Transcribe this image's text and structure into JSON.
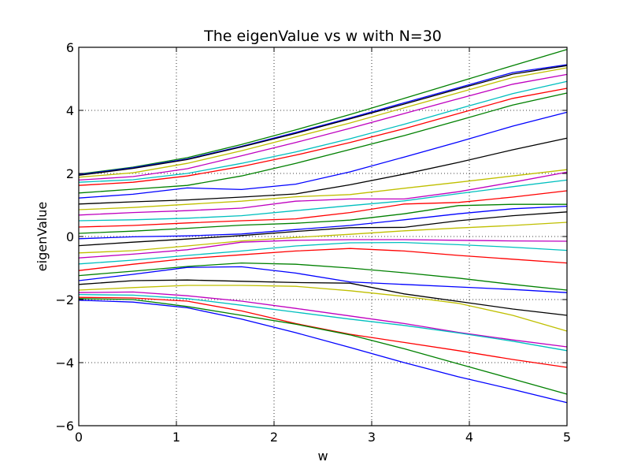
{
  "chart_data": {
    "type": "line",
    "title": "The eigenValue vs w with N=30",
    "xlabel": "w",
    "ylabel": "eigenValue",
    "xlim": [
      0,
      5
    ],
    "ylim": [
      -6,
      6
    ],
    "xticks": [
      0,
      1,
      2,
      3,
      4,
      5
    ],
    "yticks": [
      -6,
      -4,
      -2,
      0,
      2,
      4,
      6
    ],
    "grid": true,
    "x": [
      0,
      0.556,
      1.111,
      1.667,
      2.222,
      2.778,
      3.333,
      3.889,
      4.444,
      5
    ],
    "series": [
      {
        "color": "#008000",
        "values": [
          1.98,
          2.2,
          2.5,
          2.92,
          3.38,
          3.87,
          4.38,
          4.9,
          5.42,
          5.93
        ]
      },
      {
        "color": "#0000ff",
        "values": [
          1.96,
          2.18,
          2.46,
          2.86,
          3.3,
          3.76,
          4.24,
          4.72,
          5.2,
          5.45
        ]
      },
      {
        "color": "#000000",
        "values": [
          1.94,
          2.16,
          2.44,
          2.84,
          3.27,
          3.73,
          4.2,
          4.68,
          5.15,
          5.42
        ]
      },
      {
        "color": "#bfbf00",
        "values": [
          1.88,
          2.02,
          2.32,
          2.72,
          3.16,
          3.6,
          4.08,
          4.56,
          5.04,
          5.35
        ]
      },
      {
        "color": "#bf00bf",
        "values": [
          1.79,
          1.9,
          2.15,
          2.56,
          2.98,
          3.43,
          3.9,
          4.37,
          4.83,
          5.14
        ]
      },
      {
        "color": "#00bfbf",
        "values": [
          1.72,
          1.8,
          2.0,
          2.32,
          2.68,
          3.1,
          3.56,
          4.05,
          4.53,
          4.92
        ]
      },
      {
        "color": "#ff0000",
        "values": [
          1.62,
          1.72,
          1.92,
          2.22,
          2.58,
          2.98,
          3.42,
          3.9,
          4.38,
          4.7
        ]
      },
      {
        "color": "#008000",
        "values": [
          1.38,
          1.5,
          1.62,
          1.92,
          2.32,
          2.76,
          3.2,
          3.68,
          4.17,
          4.55
        ]
      },
      {
        "color": "#0000ff",
        "values": [
          1.22,
          1.34,
          1.54,
          1.49,
          1.66,
          2.05,
          2.52,
          3.0,
          3.5,
          3.94
        ]
      },
      {
        "color": "#000000",
        "values": [
          1.03,
          1.1,
          1.16,
          1.25,
          1.35,
          1.64,
          1.98,
          2.35,
          2.75,
          3.12
        ]
      },
      {
        "color": "#bfbf00",
        "values": [
          0.85,
          0.92,
          1.02,
          1.12,
          1.26,
          1.33,
          1.53,
          1.72,
          1.92,
          2.12
        ]
      },
      {
        "color": "#bf00bf",
        "values": [
          0.68,
          0.76,
          0.82,
          0.9,
          1.12,
          1.19,
          1.19,
          1.42,
          1.72,
          2.04
        ]
      },
      {
        "color": "#00bfbf",
        "values": [
          0.5,
          0.53,
          0.58,
          0.66,
          0.82,
          0.98,
          1.13,
          1.36,
          1.58,
          1.79
        ]
      },
      {
        "color": "#ff0000",
        "values": [
          0.3,
          0.35,
          0.43,
          0.5,
          0.56,
          0.76,
          1.03,
          1.08,
          1.25,
          1.45
        ]
      },
      {
        "color": "#008000",
        "values": [
          0.1,
          0.17,
          0.26,
          0.36,
          0.42,
          0.52,
          0.72,
          0.98,
          1.02,
          1.02
        ]
      },
      {
        "color": "#0000ff",
        "values": [
          -0.07,
          -0.01,
          0.02,
          0.08,
          0.22,
          0.35,
          0.53,
          0.72,
          0.88,
          0.96
        ]
      },
      {
        "color": "#000000",
        "values": [
          -0.29,
          -0.18,
          -0.08,
          0.03,
          0.16,
          0.28,
          0.29,
          0.5,
          0.66,
          0.78
        ]
      },
      {
        "color": "#bfbf00",
        "values": [
          -0.52,
          -0.45,
          -0.3,
          -0.14,
          -0.03,
          0.07,
          0.18,
          0.27,
          0.35,
          0.45
        ]
      },
      {
        "color": "#bf00bf",
        "values": [
          -0.68,
          -0.56,
          -0.42,
          -0.18,
          -0.12,
          -0.1,
          -0.1,
          -0.12,
          -0.14,
          -0.15
        ]
      },
      {
        "color": "#00bfbf",
        "values": [
          -0.87,
          -0.75,
          -0.6,
          -0.46,
          -0.3,
          -0.2,
          -0.19,
          -0.26,
          -0.34,
          -0.44
        ]
      },
      {
        "color": "#ff0000",
        "values": [
          -1.08,
          -0.88,
          -0.7,
          -0.58,
          -0.46,
          -0.38,
          -0.46,
          -0.6,
          -0.72,
          -0.84
        ]
      },
      {
        "color": "#008000",
        "values": [
          -1.24,
          -1.1,
          -0.95,
          -0.84,
          -0.88,
          -1.0,
          -1.15,
          -1.32,
          -1.52,
          -1.7
        ]
      },
      {
        "color": "#0000ff",
        "values": [
          -1.4,
          -1.2,
          -0.98,
          -0.96,
          -1.16,
          -1.44,
          -1.52,
          -1.6,
          -1.68,
          -1.78
        ]
      },
      {
        "color": "#000000",
        "values": [
          -1.52,
          -1.4,
          -1.38,
          -1.42,
          -1.46,
          -1.48,
          -1.82,
          -2.06,
          -2.3,
          -2.5
        ]
      },
      {
        "color": "#bfbf00",
        "values": [
          -1.7,
          -1.62,
          -1.55,
          -1.55,
          -1.58,
          -1.72,
          -1.9,
          -2.12,
          -2.5,
          -3.0
        ]
      },
      {
        "color": "#bf00bf",
        "values": [
          -1.78,
          -1.76,
          -1.88,
          -2.05,
          -2.28,
          -2.52,
          -2.76,
          -3.04,
          -3.28,
          -3.5
        ]
      },
      {
        "color": "#00bfbf",
        "values": [
          -1.84,
          -1.86,
          -1.97,
          -2.18,
          -2.4,
          -2.62,
          -2.82,
          -3.06,
          -3.32,
          -3.62
        ]
      },
      {
        "color": "#ff0000",
        "values": [
          -1.93,
          -1.95,
          -2.05,
          -2.36,
          -2.76,
          -3.1,
          -3.36,
          -3.62,
          -3.9,
          -4.15
        ]
      },
      {
        "color": "#008000",
        "values": [
          -1.97,
          -2.0,
          -2.22,
          -2.5,
          -2.78,
          -3.12,
          -3.56,
          -4.04,
          -4.52,
          -5.0
        ]
      },
      {
        "color": "#0000ff",
        "values": [
          -2.02,
          -2.08,
          -2.26,
          -2.62,
          -3.05,
          -3.52,
          -4.0,
          -4.45,
          -4.85,
          -5.27
        ]
      }
    ]
  }
}
